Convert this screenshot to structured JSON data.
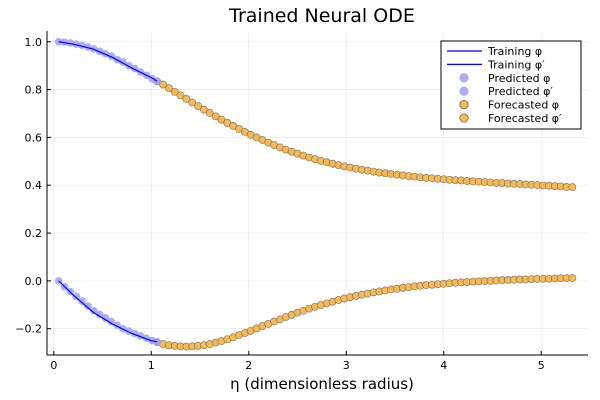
{
  "chart_data": {
    "type": "scatter",
    "title": "Trained Neural ODE",
    "xlabel": "η (dimensionless radius)",
    "ylabel": "",
    "xlim": [
      -0.07,
      5.48
    ],
    "ylim": [
      -0.31,
      1.045
    ],
    "x_ticks": [
      0,
      1,
      2,
      3,
      4,
      5
    ],
    "x_tick_labels": [
      "0",
      "1",
      "2",
      "3",
      "4",
      "5"
    ],
    "y_ticks": [
      -0.2,
      0.0,
      0.2,
      0.4,
      0.6,
      0.8,
      1.0
    ],
    "y_tick_labels": [
      "−0.2",
      "0.0",
      "0.2",
      "0.4",
      "0.6",
      "0.8",
      "1.0"
    ],
    "grid": true,
    "legend_position": "top-right",
    "colors": {
      "training": "#0000ff",
      "predicted": "#a0a0f0",
      "forecasted": "#f5b955",
      "marker_edge": "#555555"
    },
    "series": [
      {
        "name": "Training φ",
        "kind": "line",
        "x": [
          0.05,
          0.2,
          0.4,
          0.6,
          0.8,
          1.0,
          1.06
        ],
        "y": [
          1.0,
          0.99,
          0.97,
          0.935,
          0.89,
          0.85,
          0.835
        ]
      },
      {
        "name": "Training φ′",
        "kind": "line",
        "x": [
          0.05,
          0.2,
          0.4,
          0.6,
          0.8,
          1.0,
          1.06
        ],
        "y": [
          0.0,
          -0.06,
          -0.13,
          -0.18,
          -0.22,
          -0.25,
          -0.255
        ]
      },
      {
        "name": "Predicted φ",
        "kind": "scatter",
        "x": [
          0.05,
          0.11,
          0.17,
          0.23,
          0.29,
          0.35,
          0.41,
          0.47,
          0.53,
          0.59,
          0.65,
          0.71,
          0.77,
          0.83,
          0.89,
          0.95,
          1.01,
          1.06
        ],
        "y": [
          1.0,
          0.998,
          0.995,
          0.99,
          0.985,
          0.978,
          0.97,
          0.96,
          0.95,
          0.94,
          0.925,
          0.915,
          0.9,
          0.888,
          0.873,
          0.86,
          0.845,
          0.835
        ]
      },
      {
        "name": "Predicted φ′",
        "kind": "scatter",
        "x": [
          0.05,
          0.11,
          0.17,
          0.23,
          0.29,
          0.35,
          0.41,
          0.47,
          0.53,
          0.59,
          0.65,
          0.71,
          0.77,
          0.83,
          0.89,
          0.95,
          1.01,
          1.06
        ],
        "y": [
          0.0,
          -0.025,
          -0.045,
          -0.065,
          -0.085,
          -0.105,
          -0.125,
          -0.14,
          -0.155,
          -0.17,
          -0.185,
          -0.2,
          -0.21,
          -0.22,
          -0.23,
          -0.24,
          -0.25,
          -0.255
        ]
      },
      {
        "name": "Forecasted φ",
        "kind": "scatter",
        "x": [
          1.06,
          1.12,
          1.18,
          1.24,
          1.3,
          1.36,
          1.42,
          1.48,
          1.54,
          1.6,
          1.66,
          1.72,
          1.78,
          1.84,
          1.9,
          1.96,
          2.02,
          2.08,
          2.14,
          2.2,
          2.26,
          2.32,
          2.38,
          2.44,
          2.5,
          2.56,
          2.62,
          2.68,
          2.74,
          2.8,
          2.86,
          2.92,
          2.98,
          3.04,
          3.1,
          3.16,
          3.22,
          3.28,
          3.34,
          3.4,
          3.46,
          3.52,
          3.58,
          3.64,
          3.7,
          3.76,
          3.82,
          3.88,
          3.94,
          4.0,
          4.06,
          4.12,
          4.18,
          4.24,
          4.3,
          4.36,
          4.42,
          4.48,
          4.54,
          4.6,
          4.66,
          4.72,
          4.78,
          4.84,
          4.9,
          4.96,
          5.02,
          5.08,
          5.14,
          5.2,
          5.26,
          5.32
        ],
        "y": [
          0.835,
          0.821,
          0.806,
          0.791,
          0.776,
          0.761,
          0.746,
          0.731,
          0.716,
          0.702,
          0.688,
          0.674,
          0.661,
          0.648,
          0.635,
          0.623,
          0.611,
          0.6,
          0.589,
          0.578,
          0.568,
          0.558,
          0.549,
          0.54,
          0.532,
          0.524,
          0.516,
          0.509,
          0.502,
          0.496,
          0.49,
          0.484,
          0.479,
          0.474,
          0.469,
          0.465,
          0.461,
          0.457,
          0.453,
          0.45,
          0.447,
          0.444,
          0.441,
          0.438,
          0.436,
          0.433,
          0.431,
          0.429,
          0.427,
          0.425,
          0.423,
          0.421,
          0.42,
          0.418,
          0.416,
          0.415,
          0.413,
          0.412,
          0.41,
          0.409,
          0.407,
          0.406,
          0.405,
          0.403,
          0.402,
          0.401,
          0.399,
          0.398,
          0.396,
          0.395,
          0.393,
          0.392
        ]
      },
      {
        "name": "Forecasted φ′",
        "kind": "scatter",
        "x": [
          1.06,
          1.12,
          1.18,
          1.24,
          1.3,
          1.36,
          1.42,
          1.48,
          1.54,
          1.6,
          1.66,
          1.72,
          1.78,
          1.84,
          1.9,
          1.96,
          2.02,
          2.08,
          2.14,
          2.2,
          2.26,
          2.32,
          2.38,
          2.44,
          2.5,
          2.56,
          2.62,
          2.68,
          2.74,
          2.8,
          2.86,
          2.92,
          2.98,
          3.04,
          3.1,
          3.16,
          3.22,
          3.28,
          3.34,
          3.4,
          3.46,
          3.52,
          3.58,
          3.64,
          3.7,
          3.76,
          3.82,
          3.88,
          3.94,
          4.0,
          4.06,
          4.12,
          4.18,
          4.24,
          4.3,
          4.36,
          4.42,
          4.48,
          4.54,
          4.6,
          4.66,
          4.72,
          4.78,
          4.84,
          4.9,
          4.96,
          5.02,
          5.08,
          5.14,
          5.2,
          5.26,
          5.32
        ],
        "y": [
          -0.256,
          -0.264,
          -0.269,
          -0.272,
          -0.274,
          -0.275,
          -0.274,
          -0.272,
          -0.269,
          -0.264,
          -0.258,
          -0.252,
          -0.244,
          -0.236,
          -0.227,
          -0.218,
          -0.209,
          -0.199,
          -0.189,
          -0.18,
          -0.17,
          -0.161,
          -0.151,
          -0.142,
          -0.133,
          -0.125,
          -0.116,
          -0.108,
          -0.101,
          -0.094,
          -0.087,
          -0.08,
          -0.074,
          -0.068,
          -0.063,
          -0.058,
          -0.053,
          -0.048,
          -0.044,
          -0.04,
          -0.036,
          -0.033,
          -0.029,
          -0.026,
          -0.023,
          -0.021,
          -0.018,
          -0.016,
          -0.014,
          -0.012,
          -0.01,
          -0.008,
          -0.006,
          -0.005,
          -0.003,
          -0.002,
          -0.001,
          0.0,
          0.002,
          0.003,
          0.004,
          0.005,
          0.006,
          0.006,
          0.007,
          0.008,
          0.009,
          0.009,
          0.01,
          0.011,
          0.011,
          0.012
        ]
      }
    ]
  }
}
